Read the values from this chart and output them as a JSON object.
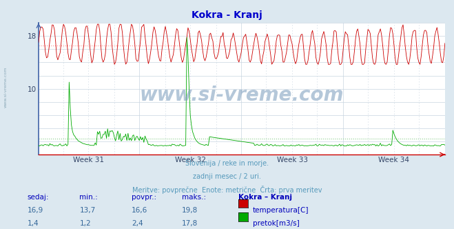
{
  "title": "Kokra - Kranj",
  "title_color": "#0000cc",
  "bg_color": "#dce8f0",
  "plot_bg_color": "#ffffff",
  "grid_color": "#c8d4e0",
  "x_labels": [
    "Week 31",
    "Week 32",
    "Week 33",
    "Week 34"
  ],
  "y_min": 0,
  "y_max": 20,
  "y_ticks": [
    10,
    18
  ],
  "temp_color": "#cc0000",
  "flow_color": "#00aa00",
  "avg_temp_color": "#ff8888",
  "avg_flow_color": "#88cc88",
  "subtitle1": "Slovenija / reke in morje.",
  "subtitle2": "zadnji mesec / 2 uri.",
  "subtitle3": "Meritve: povprečne  Enote: metrične  Črta: prva meritev",
  "subtitle_color": "#5599bb",
  "table_headers": [
    "sedaj:",
    "min.:",
    "povpr.:",
    "maks.:",
    "Kokra – Kranj"
  ],
  "table_row1": [
    "16,9",
    "13,7",
    "16,6",
    "19,8"
  ],
  "table_row2": [
    "1,4",
    "1,2",
    "2,4",
    "17,8"
  ],
  "legend_labels": [
    "temperatura[C]",
    "pretok[m3/s]"
  ],
  "avg_temp": 16.6,
  "avg_flow": 2.4,
  "temp_min": 13.7,
  "temp_max": 19.8,
  "flow_max": 17.8,
  "n_points": 360,
  "axis_color": "#4466aa",
  "spine_color": "#cc0000",
  "tick_color": "#334466"
}
